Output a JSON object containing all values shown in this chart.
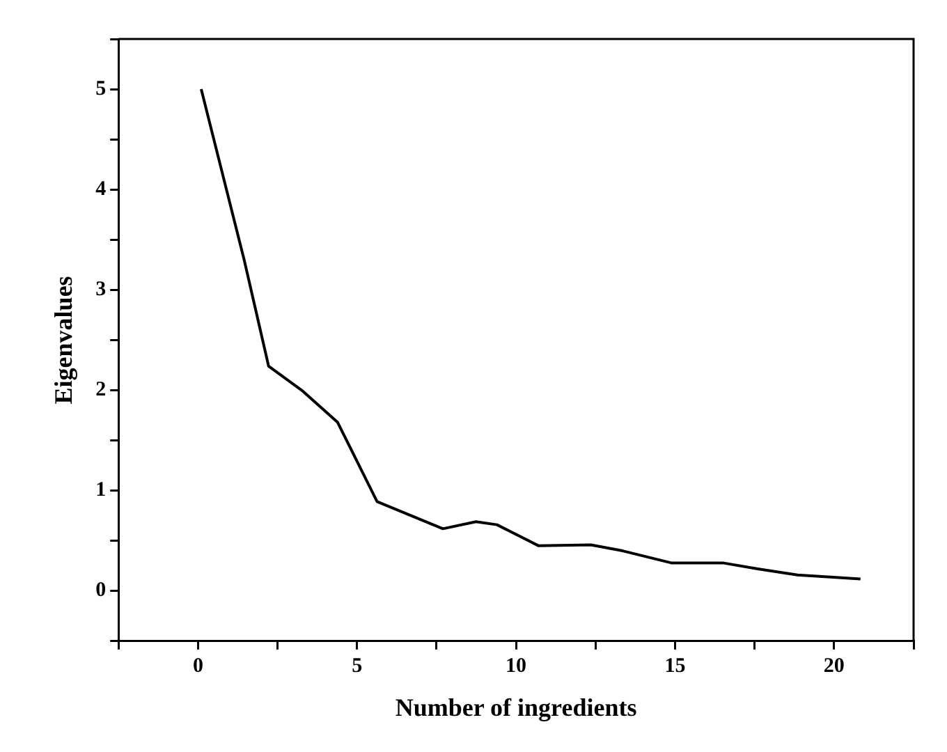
{
  "chart_data": {
    "type": "line",
    "xlabel": "Number of ingredients",
    "ylabel": "Eigenvalues",
    "series": [
      {
        "color": "#000000",
        "x": [
          0.1,
          1.45,
          2.22,
          3.3,
          4.39,
          5.63,
          7.7,
          8.74,
          9.4,
          10.71,
          12.35,
          13.35,
          14.88,
          16.5,
          17.6,
          18.85,
          20.83
        ],
        "values": [
          5.0,
          3.3,
          2.24,
          1.99,
          1.68,
          0.89,
          0.62,
          0.69,
          0.66,
          0.45,
          0.46,
          0.4,
          0.28,
          0.28,
          0.22,
          0.16,
          0.12
        ]
      }
    ],
    "xlim": [
      -2.5,
      22.5
    ],
    "xticks": [
      {
        "value": -2.5,
        "label": null
      },
      0,
      {
        "value": 2.5,
        "label": null
      },
      5,
      {
        "value": 7.5,
        "label": null
      },
      10,
      {
        "value": 12.5,
        "label": null
      },
      15,
      {
        "value": 17.5,
        "label": null
      },
      20,
      {
        "value": 22.5,
        "label": null
      }
    ],
    "ylim": [
      -0.5,
      5.5
    ],
    "yticks": [
      {
        "value": -0.5,
        "label": null
      },
      0,
      {
        "value": 0.5,
        "label": null
      },
      1,
      {
        "value": 1.5,
        "label": null
      },
      2,
      {
        "value": 2.5,
        "label": null
      },
      3,
      {
        "value": 3.5,
        "label": null
      },
      4,
      {
        "value": 4.5,
        "label": null
      },
      5,
      {
        "value": 5.5,
        "label": null
      }
    ],
    "grid": false,
    "legend": false,
    "marker": "none",
    "line_style": "solid"
  }
}
